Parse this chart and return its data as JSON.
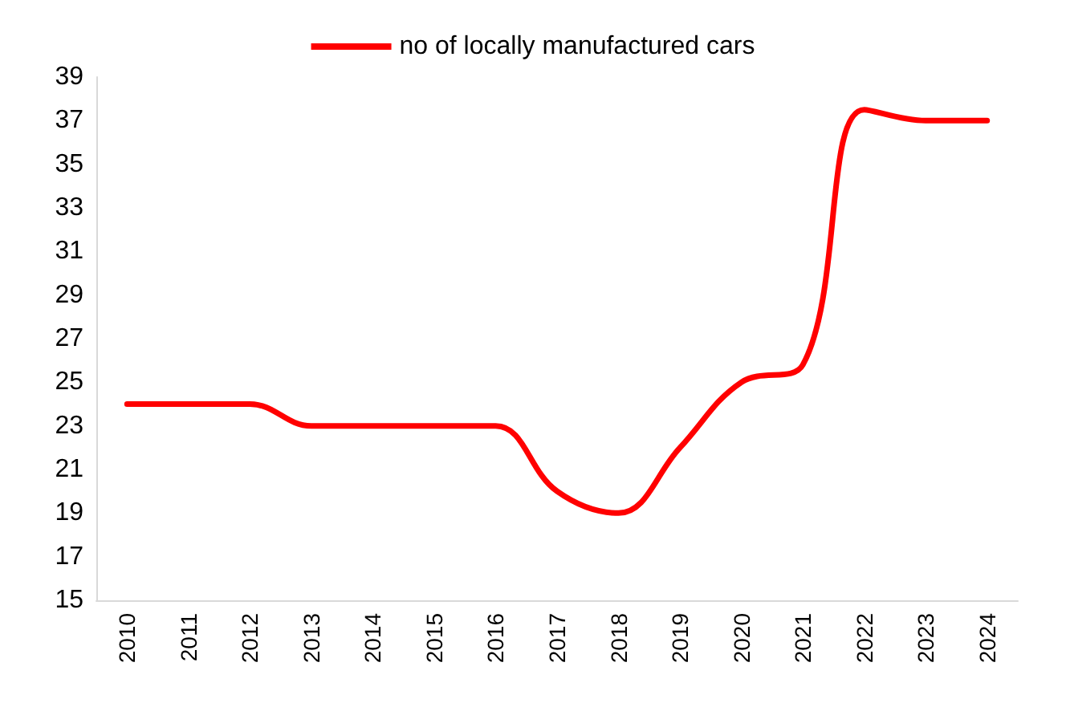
{
  "chart_data": {
    "type": "line",
    "categories": [
      "2010",
      "2011",
      "2012",
      "2013",
      "2014",
      "2015",
      "2016",
      "2017",
      "2018",
      "2019",
      "2020",
      "2021",
      "2022",
      "2023",
      "2024"
    ],
    "series": [
      {
        "name": "no of locally manufactured cars",
        "color": "#ff0000",
        "values": [
          24,
          24,
          24,
          23,
          23,
          23,
          23,
          20,
          19,
          22,
          25,
          25.8,
          37.5,
          37,
          37
        ]
      }
    ],
    "ylim": [
      15,
      39
    ],
    "yticks": [
      15,
      17,
      19,
      21,
      23,
      25,
      27,
      29,
      31,
      33,
      35,
      37,
      39
    ],
    "grid": false,
    "legend": "top",
    "marker": "none",
    "line_style": "solid"
  }
}
